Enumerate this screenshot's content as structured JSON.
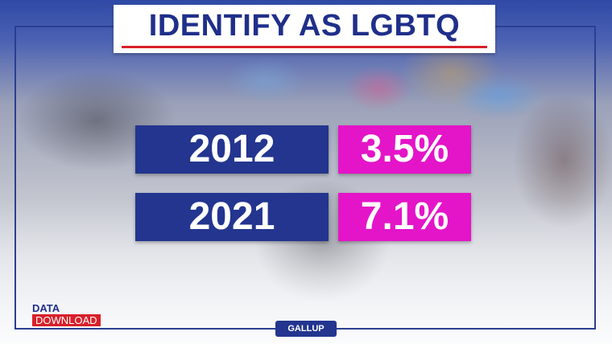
{
  "title": "IDENTIFY AS LGBTQ",
  "rows": [
    {
      "year": "2012",
      "value": "3.5%"
    },
    {
      "year": "2021",
      "value": "7.1%"
    }
  ],
  "logo": {
    "top": "DATA",
    "bottom": "DOWNLOAD"
  },
  "source": "GALLUP",
  "colors": {
    "navy": "#23358f",
    "magenta": "#e414c8",
    "red": "#d8202a"
  }
}
